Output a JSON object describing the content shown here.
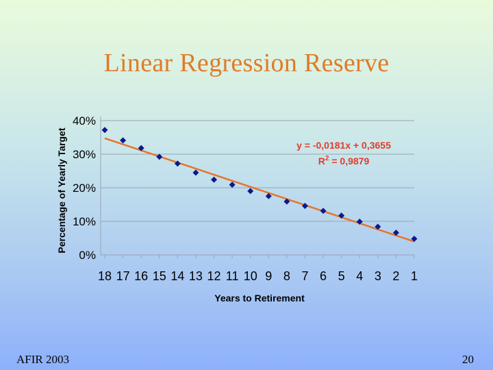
{
  "slide": {
    "title": "Linear Regression Reserve",
    "footer_left": "AFIR 2003",
    "page_number": "20"
  },
  "colors": {
    "title": "#e07b2a",
    "points": "#0a1a8c",
    "trendline": "#e8742a",
    "annotation": "#e23b2b",
    "gridline": "#9aa3b2"
  },
  "chart_data": {
    "type": "scatter",
    "xlabel": "Years to Retirement",
    "ylabel": "Percentage of Yearly Target",
    "x_reversed": true,
    "x": [
      18,
      17,
      16,
      15,
      14,
      13,
      12,
      11,
      10,
      9,
      8,
      7,
      6,
      5,
      4,
      3,
      2,
      1
    ],
    "x_tick_labels": [
      "18",
      "17",
      "16",
      "15",
      "14",
      "13",
      "12",
      "11",
      "10",
      "9",
      "8",
      "7",
      "6",
      "5",
      "4",
      "3",
      "2",
      "1"
    ],
    "y_tick_labels": [
      "0%",
      "10%",
      "20%",
      "30%",
      "40%"
    ],
    "y_ticks": [
      0,
      0.1,
      0.2,
      0.3,
      0.4
    ],
    "ylim": [
      0,
      0.4
    ],
    "grid": true,
    "series": [
      {
        "values": [
          0.372,
          0.341,
          0.318,
          0.292,
          0.272,
          0.245,
          0.224,
          0.209,
          0.19,
          0.175,
          0.159,
          0.146,
          0.131,
          0.117,
          0.099,
          0.084,
          0.066,
          0.048
        ]
      }
    ],
    "trendline": {
      "equation": "y = -0,0181x + 0,3655",
      "r2_prefix": "R",
      "r2_sup": "2",
      "r2_rest": " = 0,9879",
      "slope": -0.0181,
      "intercept": 0.3655
    }
  }
}
